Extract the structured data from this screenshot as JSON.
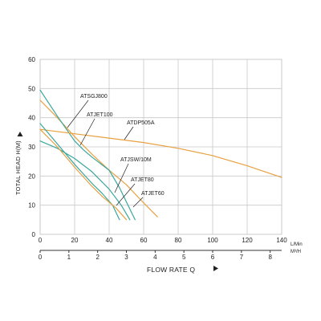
{
  "chart_data": {
    "type": "line",
    "title": "",
    "ylabel": "TOTAL HEAD H(M)",
    "xlabel": "FLOW RATE Q",
    "ylim": [
      0,
      60
    ],
    "xlim": [
      0,
      140
    ],
    "grid": true,
    "y_ticks": [
      "0",
      "10",
      "20",
      "30",
      "40",
      "50",
      "60"
    ],
    "x_ticks_lmin": [
      "0",
      "20",
      "40",
      "60",
      "80",
      "100",
      "120",
      "140"
    ],
    "x_ticks_m3h": [
      "0",
      "1",
      "2",
      "3",
      "4",
      "5",
      "6",
      "7",
      "8"
    ],
    "unit_lmin": "L/Min",
    "unit_m3h": "M³/H",
    "colors": {
      "orange": "#e8a040",
      "teal": "#3aa79c",
      "grid": "#c8c8c8",
      "axis": "#333333"
    },
    "series": [
      {
        "name": "ATSGJ800",
        "color": "#e8a040",
        "x": [
          0,
          10,
          20,
          30,
          40,
          50,
          58,
          68
        ],
        "y": [
          46,
          40,
          33.5,
          27.5,
          22,
          17,
          12,
          6
        ]
      },
      {
        "name": "ATJET100",
        "color": "#3aa79c",
        "x": [
          0,
          10,
          20,
          25,
          30,
          40,
          46,
          55
        ],
        "y": [
          49.5,
          40.5,
          32,
          29,
          26.5,
          22,
          16,
          5
        ]
      },
      {
        "name": "ATDP505A",
        "color": "#e8a040",
        "x": [
          0,
          20,
          40,
          60,
          80,
          100,
          120,
          140
        ],
        "y": [
          36,
          34.5,
          33,
          31.5,
          29.5,
          27,
          23.5,
          19.5
        ]
      },
      {
        "name": "ATJSW/10M",
        "color": "#3aa79c",
        "x": [
          0,
          10,
          20,
          30,
          40,
          47,
          52
        ],
        "y": [
          32,
          29.5,
          26,
          21.5,
          15.5,
          10,
          5
        ]
      },
      {
        "name": "ATJET80",
        "color": "#3aa79c",
        "x": [
          0,
          10,
          20,
          30,
          36,
          42,
          46
        ],
        "y": [
          38,
          31,
          24,
          17.5,
          14,
          10,
          5
        ]
      },
      {
        "name": "ATJET60",
        "color": "#e8a040",
        "x": [
          0,
          10,
          20,
          30,
          36,
          44,
          50
        ],
        "y": [
          36,
          30,
          23,
          16.5,
          13,
          9,
          5
        ]
      }
    ],
    "annotations": [
      {
        "text": "ATSGJ800",
        "series": "ATSGJ800"
      },
      {
        "text": "ATJET100",
        "series": "ATJET100"
      },
      {
        "text": "ATDP505A",
        "series": "ATDP505A"
      },
      {
        "text": "ATJSW/10M",
        "series": "ATJSW/10M"
      },
      {
        "text": "ATJET80",
        "series": "ATJET80"
      },
      {
        "text": "ATJET60",
        "series": "ATJET60"
      }
    ]
  }
}
